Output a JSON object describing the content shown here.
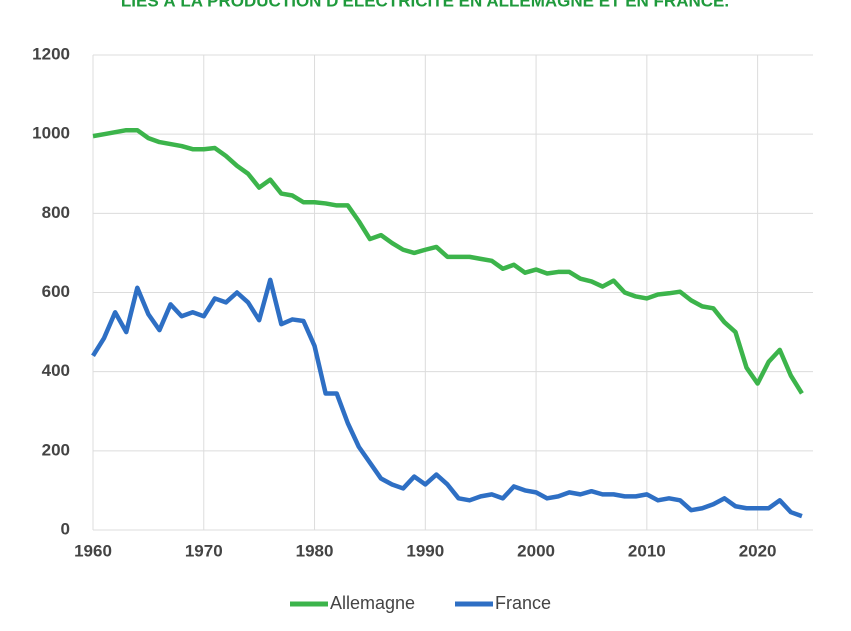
{
  "chart_data": {
    "type": "line",
    "title": "LIÉS À LA PRODUCTION D'ÉLECTRICITÉ EN ALLEMAGNE ET EN FRANCE.",
    "x": [
      1960,
      1961,
      1962,
      1963,
      1964,
      1965,
      1966,
      1967,
      1968,
      1969,
      1970,
      1971,
      1972,
      1973,
      1974,
      1975,
      1976,
      1977,
      1978,
      1979,
      1980,
      1981,
      1982,
      1983,
      1984,
      1985,
      1986,
      1987,
      1988,
      1989,
      1990,
      1991,
      1992,
      1993,
      1994,
      1995,
      1996,
      1997,
      1998,
      1999,
      2000,
      2001,
      2002,
      2003,
      2004,
      2005,
      2006,
      2007,
      2008,
      2009,
      2010,
      2011,
      2012,
      2013,
      2014,
      2015,
      2016,
      2017,
      2018,
      2019,
      2020,
      2021,
      2022,
      2023,
      2024
    ],
    "series": [
      {
        "name": "Allemagne",
        "color": "#3cb44b",
        "values": [
          995,
          1000,
          1005,
          1010,
          1010,
          990,
          980,
          975,
          970,
          962,
          962,
          965,
          945,
          920,
          900,
          865,
          885,
          850,
          845,
          828,
          828,
          825,
          820,
          820,
          780,
          735,
          745,
          725,
          708,
          700,
          708,
          715,
          690,
          690,
          690,
          685,
          680,
          660,
          670,
          650,
          658,
          648,
          652,
          652,
          635,
          628,
          615,
          630,
          600,
          590,
          585,
          595,
          598,
          602,
          580,
          565,
          560,
          525,
          500,
          410,
          370,
          425,
          455,
          390,
          345
        ]
      },
      {
        "name": "France",
        "color": "#2e6fc4",
        "values": [
          440,
          485,
          550,
          500,
          612,
          545,
          505,
          570,
          540,
          550,
          540,
          585,
          575,
          600,
          575,
          530,
          632,
          520,
          532,
          528,
          465,
          345,
          345,
          270,
          210,
          170,
          130,
          115,
          105,
          135,
          115,
          140,
          115,
          80,
          75,
          85,
          90,
          80,
          110,
          100,
          95,
          80,
          85,
          95,
          90,
          98,
          90,
          90,
          85,
          85,
          90,
          75,
          80,
          75,
          50,
          55,
          65,
          80,
          60,
          55,
          55,
          55,
          75,
          45,
          35
        ]
      }
    ],
    "xlim": [
      1960,
      2025
    ],
    "xticks": [
      1960,
      1970,
      1980,
      1990,
      2000,
      2010,
      2020
    ],
    "ylim": [
      0,
      1200
    ],
    "yticks": [
      0,
      200,
      400,
      600,
      800,
      1000,
      1200
    ],
    "grid": true,
    "legend": "bottom"
  }
}
